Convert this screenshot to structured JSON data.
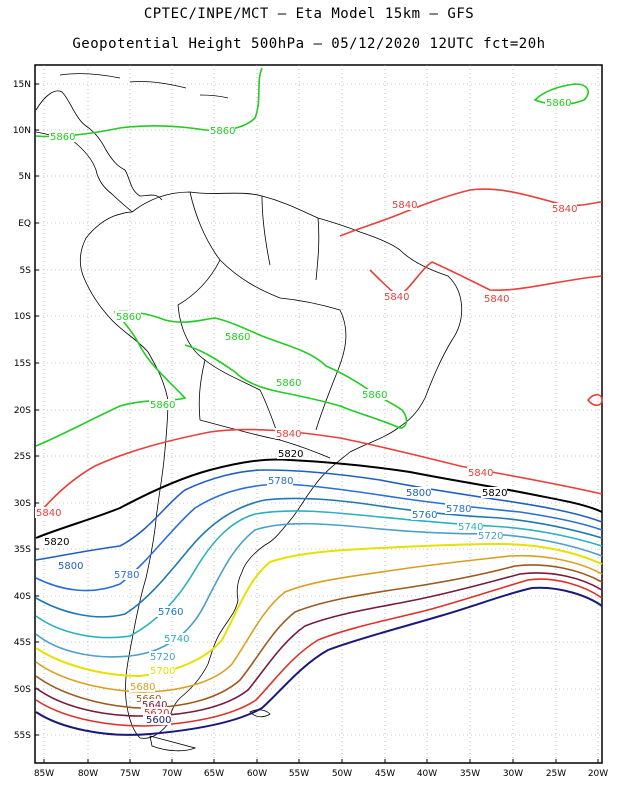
{
  "title_line1": "CPTEC/INPE/MCT –  Eta Model 15km – GFS",
  "title_line2": "Geopotential Height 500hPa – 05/12/2020 12UTC fct=20h",
  "lat_labels": [
    "15N",
    "10N",
    "5N",
    "EQ",
    "5S",
    "10S",
    "15S",
    "20S",
    "25S",
    "30S",
    "35S",
    "40S",
    "45S",
    "50S",
    "55S"
  ],
  "lon_labels": [
    "85W",
    "80W",
    "75W",
    "70W",
    "65W",
    "60W",
    "55W",
    "50W",
    "45W",
    "40W",
    "35W",
    "30W",
    "25W",
    "20W"
  ],
  "contour_colors": {
    "5860": "#22cc22",
    "5840": "#e8413a",
    "5820": "#000000",
    "5800": "#1f5fbf",
    "5780": "#2a6fd6",
    "5760": "#1f77b4",
    "5740": "#2ab0c0",
    "5720": "#4aa0c8",
    "5700": "#e8e000",
    "5680": "#d9a020",
    "5660": "#9c5a20",
    "5640": "#7a1a3a",
    "5620": "#e0302a",
    "5600": "#1a1a7a"
  },
  "contour_labels": [
    {
      "id": "c5860a",
      "text": "5860",
      "level": "5860"
    },
    {
      "id": "c5860b",
      "text": "5860",
      "level": "5860"
    },
    {
      "id": "c5860c",
      "text": "5860",
      "level": "5860"
    },
    {
      "id": "c5860d",
      "text": "5860",
      "level": "5860"
    },
    {
      "id": "c5860e",
      "text": "5860",
      "level": "5860"
    },
    {
      "id": "c5860f",
      "text": "5860",
      "level": "5860"
    },
    {
      "id": "c5860g",
      "text": "5860",
      "level": "5860"
    },
    {
      "id": "c5860h",
      "text": "5860",
      "level": "5860"
    },
    {
      "id": "c5840a",
      "text": "5840",
      "level": "5840"
    },
    {
      "id": "c5840b",
      "text": "5840",
      "level": "5840"
    },
    {
      "id": "c5840c",
      "text": "5840",
      "level": "5840"
    },
    {
      "id": "c5840d",
      "text": "5840",
      "level": "5840"
    },
    {
      "id": "c5840e",
      "text": "5840",
      "level": "5840"
    },
    {
      "id": "c5840f",
      "text": "5840",
      "level": "5840"
    },
    {
      "id": "c5840g",
      "text": "5840",
      "level": "5840"
    },
    {
      "id": "c5820a",
      "text": "5820",
      "level": "5820"
    },
    {
      "id": "c5820b",
      "text": "5820",
      "level": "5820"
    },
    {
      "id": "c5820c",
      "text": "5820",
      "level": "5820"
    },
    {
      "id": "c5800a",
      "text": "5800",
      "level": "5800"
    },
    {
      "id": "c5800b",
      "text": "5800",
      "level": "5800"
    },
    {
      "id": "c5780a",
      "text": "5780",
      "level": "5780"
    },
    {
      "id": "c5780b",
      "text": "5780",
      "level": "5780"
    },
    {
      "id": "c5780c",
      "text": "5780",
      "level": "5780"
    },
    {
      "id": "c5760a",
      "text": "5760",
      "level": "5760"
    },
    {
      "id": "c5760b",
      "text": "5760",
      "level": "5760"
    },
    {
      "id": "c5740a",
      "text": "5740",
      "level": "5740"
    },
    {
      "id": "c5740b",
      "text": "5740",
      "level": "5740"
    },
    {
      "id": "c5720a",
      "text": "5720",
      "level": "5720"
    },
    {
      "id": "c5720b",
      "text": "5720",
      "level": "5720"
    },
    {
      "id": "c5700a",
      "text": "5700",
      "level": "5700"
    },
    {
      "id": "c5680a",
      "text": "5680",
      "level": "5680"
    },
    {
      "id": "c5660a",
      "text": "5660",
      "level": "5660"
    },
    {
      "id": "c5640a",
      "text": "5640",
      "level": "5640"
    },
    {
      "id": "c5620a",
      "text": "5620",
      "level": "5620"
    },
    {
      "id": "c5600a",
      "text": "5600",
      "level": "5600"
    }
  ]
}
